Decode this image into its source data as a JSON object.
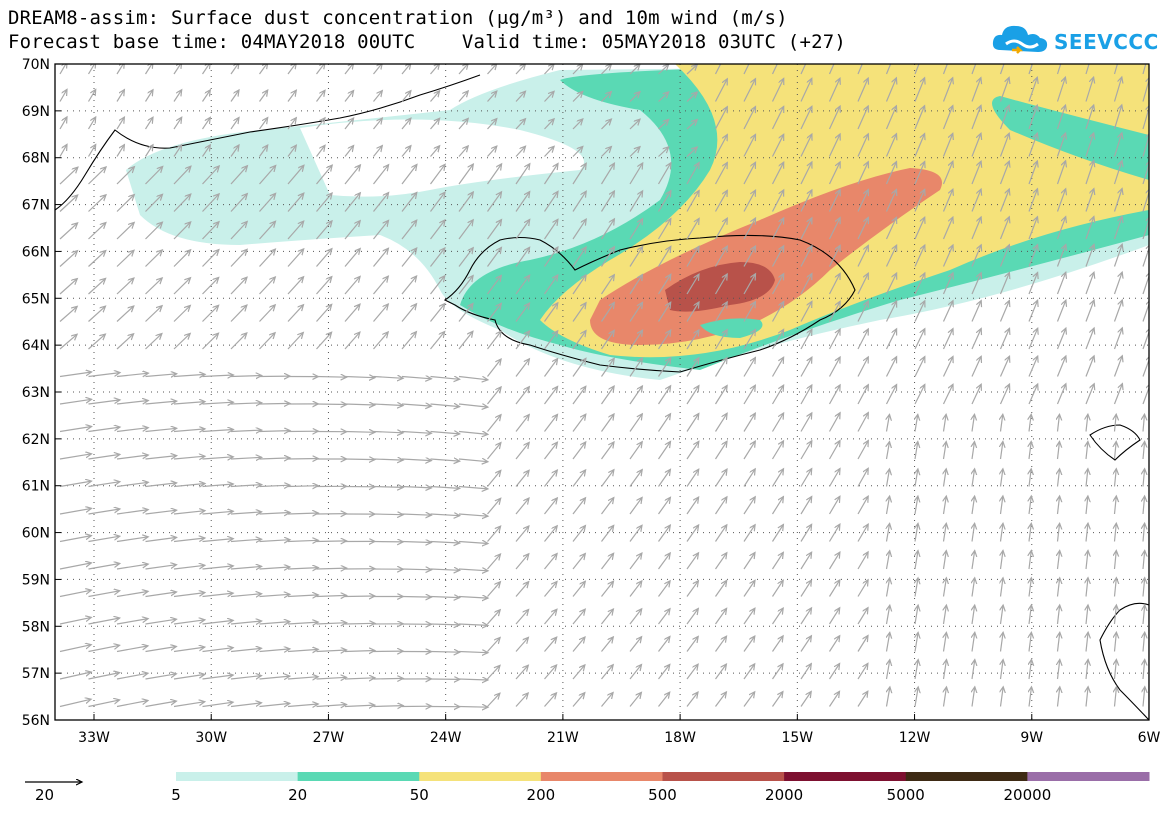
{
  "title_line1": "DREAM8-assim: Surface dust concentration (μg/m³) and 10m wind (m/s)",
  "title_line2": "Forecast base time: 04MAY2018 00UTC    Valid time: 05MAY2018 03UTC (+27)",
  "logo_text": "SEEVCCC",
  "lat_labels": [
    "70N",
    "69N",
    "68N",
    "67N",
    "66N",
    "65N",
    "64N",
    "63N",
    "62N",
    "61N",
    "60N",
    "59N",
    "58N",
    "57N",
    "56N"
  ],
  "lon_labels": [
    "33W",
    "30W",
    "27W",
    "24W",
    "21W",
    "18W",
    "15W",
    "12W",
    "9W",
    "6W"
  ],
  "wind_ref_value": "20",
  "colorbar": {
    "labels": [
      "5",
      "20",
      "50",
      "200",
      "500",
      "2000",
      "5000",
      "20000"
    ],
    "colors": [
      "#c9f0ea",
      "#5ad9b4",
      "#f5e27a",
      "#e8876a",
      "#b8524a",
      "#7d1030",
      "#3e2a14",
      "#9a6ea8"
    ]
  },
  "colors": {
    "arrow": "#a8a8a8",
    "coast": "#000000",
    "grid": "#555555"
  }
}
